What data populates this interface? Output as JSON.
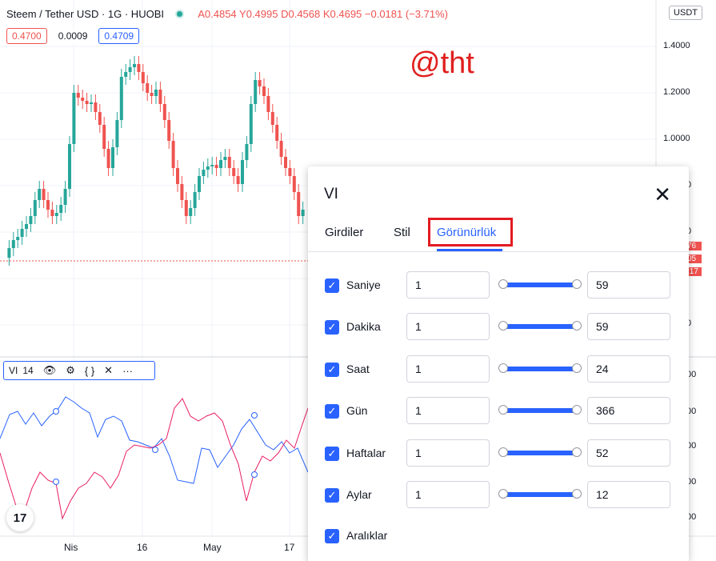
{
  "header": {
    "symbol": "Steem / Tether USD · 1G · HUOBI",
    "ohlc": "A0.4854 Y0.4995 D0.4568 K0.4695 −0.0181 (−3.71%)",
    "bid": "0.4700",
    "spread": "0.0009",
    "ask": "0.4709",
    "currency": "USDT"
  },
  "watermark": "@tht",
  "price_axis": [
    "1.4000",
    "1.2000",
    "1.0000",
    "0",
    "0",
    "0"
  ],
  "price_tags": [
    "76",
    "05",
    ":17"
  ],
  "indicator_axis": [
    "00",
    "00",
    "00",
    "00",
    "00"
  ],
  "time_axis": [
    "Nis",
    "16",
    "May",
    "17"
  ],
  "indicator_legend": {
    "name": "VI",
    "length": "14"
  },
  "dialog": {
    "title": "VI",
    "tabs": [
      {
        "label": "Girdiler"
      },
      {
        "label": "Stil"
      },
      {
        "label": "Görünürlük"
      }
    ],
    "rows": [
      {
        "label": "Saniye",
        "min": "1",
        "max": "59"
      },
      {
        "label": "Dakika",
        "min": "1",
        "max": "59"
      },
      {
        "label": "Saat",
        "min": "1",
        "max": "24"
      },
      {
        "label": "Gün",
        "min": "1",
        "max": "366"
      },
      {
        "label": "Haftalar",
        "min": "1",
        "max": "52"
      },
      {
        "label": "Aylar",
        "min": "1",
        "max": "12"
      },
      {
        "label": "Aralıklar"
      }
    ]
  },
  "colors": {
    "up": "#26a69a",
    "down": "#ef5350",
    "vi_plus": "#2962ff",
    "vi_minus": "#e91e63",
    "accent": "#2962ff"
  }
}
